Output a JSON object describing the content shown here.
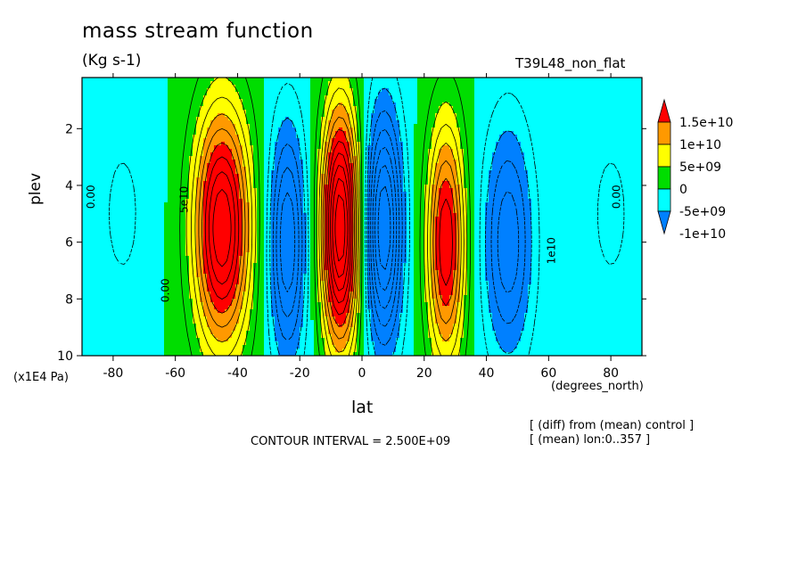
{
  "chart_data": {
    "type": "heatmap",
    "title": "mass stream function",
    "subtitle": "(Kg s-1)",
    "run_name": "T39L48_non_flat",
    "xlabel": "lat",
    "xunit": "(degrees_north)",
    "ylabel": "plev",
    "yunit": "(x1E4 Pa)",
    "xlim": [
      -90,
      90
    ],
    "ylim": [
      0.2,
      10
    ],
    "y_reversed": true,
    "x_ticks": [
      -80,
      -60,
      -40,
      -20,
      0,
      20,
      40,
      60,
      80
    ],
    "y_ticks": [
      2,
      4,
      6,
      8,
      10
    ],
    "contour_interval_text": "CONTOUR INTERVAL = 2.500E+09",
    "notes": [
      "[ (diff) from (mean) control ]",
      "[ (mean) lon:0..357 ]"
    ],
    "colorbar": {
      "levels": [
        "1.5e+10",
        "1e+10",
        "5e+09",
        "0",
        "-5e+09",
        "-1e+10"
      ],
      "colors": [
        "#ff0000",
        "#ff9900",
        "#ffff00",
        "#00dd00",
        "#00ffff",
        "#0080ff",
        "#000000"
      ]
    },
    "contour_labels": [
      {
        "text": "0.00",
        "lat": -86,
        "plev": 4.4
      },
      {
        "text": "5e10",
        "lat": -56,
        "plev": 4.5
      },
      {
        "text": "0.00",
        "lat": -62,
        "plev": 7.7
      },
      {
        "text": "1e10",
        "lat": 62,
        "plev": 6.3
      },
      {
        "text": "0.00",
        "lat": 83,
        "plev": 4.4
      }
    ],
    "cells": [
      {
        "lat": -45,
        "plev": 5.5,
        "value": 25000000000.0
      },
      {
        "lat": -24,
        "plev": 6.0,
        "value": -15000000000.0
      },
      {
        "lat": -7,
        "plev": 5.5,
        "value": 30000000000.0
      },
      {
        "lat": 7,
        "plev": 5.5,
        "value": -20000000000.0
      },
      {
        "lat": 27,
        "plev": 6.0,
        "value": 20000000000.0
      },
      {
        "lat": 47,
        "plev": 6.0,
        "value": -12000000000.0
      },
      {
        "lat": -77,
        "plev": 5.0,
        "value": -3000000000.0
      },
      {
        "lat": 80,
        "plev": 5.0,
        "value": -3000000000.0
      }
    ]
  }
}
